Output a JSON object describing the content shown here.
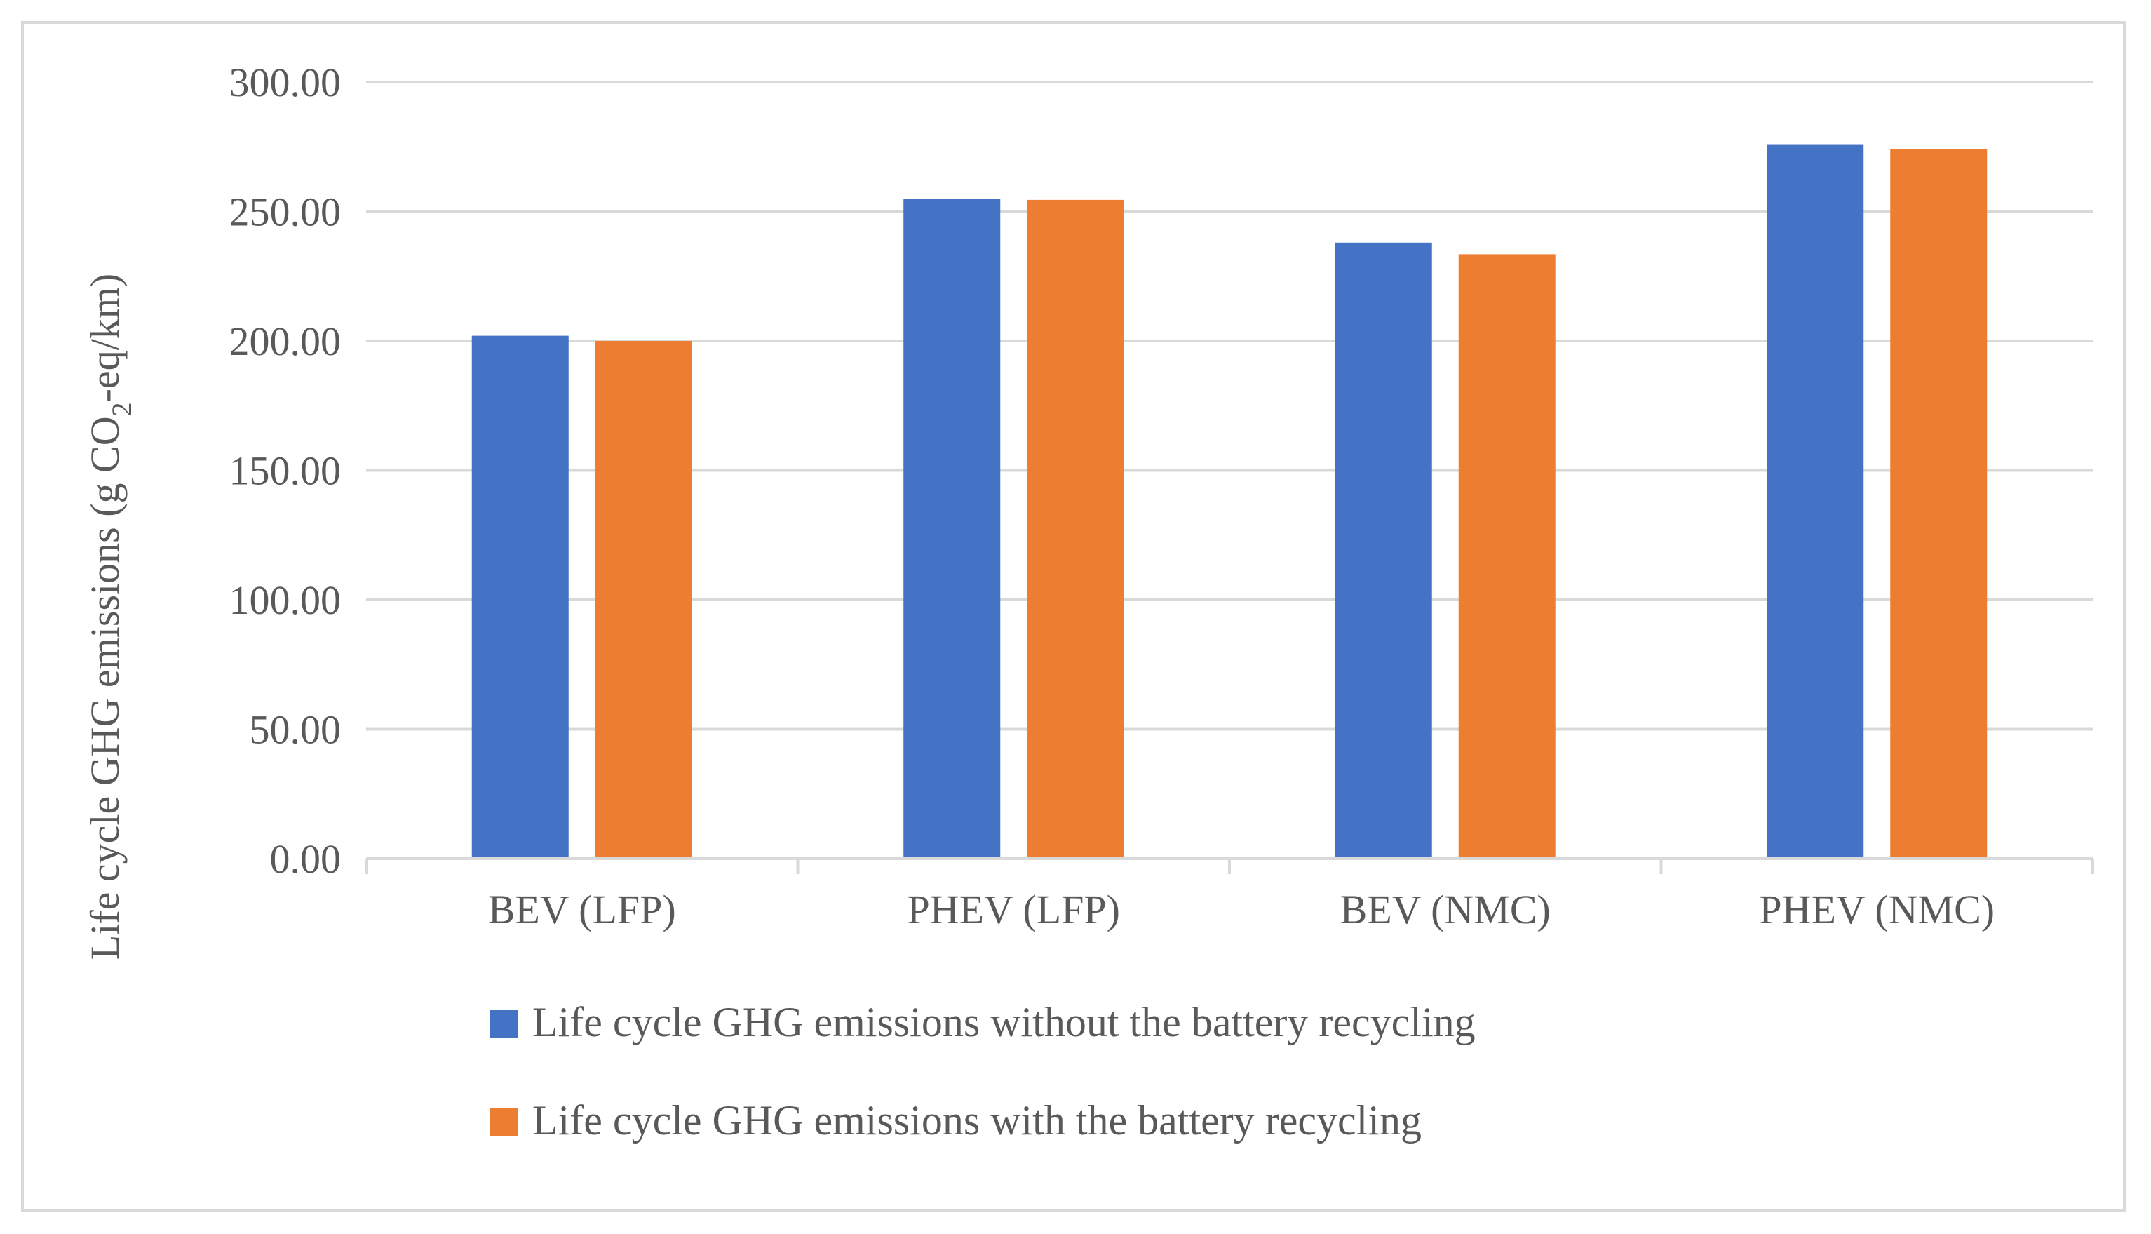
{
  "chart_data": {
    "type": "bar",
    "title": "",
    "xlabel": "",
    "ylabel": {
      "prefix": "Life cycle GHG emissions (g CO",
      "subscript": "2",
      "suffix": "-eq/km)"
    },
    "ylim": [
      0,
      300
    ],
    "yticks": [
      "0.00",
      "50.00",
      "100.00",
      "150.00",
      "200.00",
      "250.00",
      "300.00"
    ],
    "ytick_values": [
      0,
      50,
      100,
      150,
      200,
      250,
      300
    ],
    "categories": [
      "BEV (LFP)",
      "PHEV (LFP)",
      "BEV (NMC)",
      "PHEV (NMC)"
    ],
    "series": [
      {
        "name": "Life cycle GHG emissions without the battery recycling",
        "color": "#4472c4",
        "values": [
          202,
          255,
          238,
          276
        ]
      },
      {
        "name": "Life cycle GHG emissions with the battery recycling",
        "color": "#ed7d31",
        "values": [
          200,
          254.5,
          233.5,
          274
        ]
      }
    ],
    "grid": true,
    "legend_position": "bottom"
  },
  "colors": {
    "gridline": "#d9d9d9",
    "axis": "#d9d9d9",
    "text": "#595959",
    "border": "#d9d9d9"
  }
}
